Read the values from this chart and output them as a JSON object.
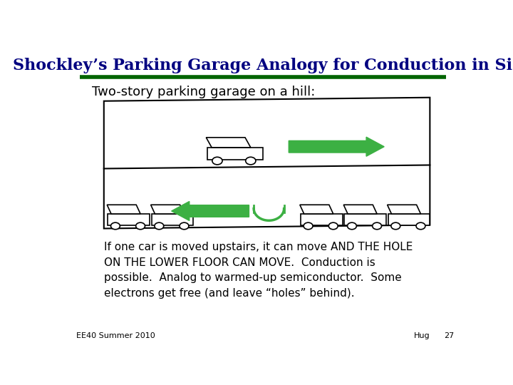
{
  "title": "Shockley’s Parking Garage Analogy for Conduction in Si",
  "title_color": "#000080",
  "title_fontsize": 16,
  "underline_color": "#006400",
  "subtitle": "Two-story parking garage on a hill:",
  "subtitle_fontsize": 13,
  "body_text": "If one car is moved upstairs, it can move AND THE HOLE\nON THE LOWER FLOOR CAN MOVE.  Conduction is\npossible.  Analog to warmed-up semiconductor.  Some\nelectrons get free (and leave “holes” behind).",
  "body_fontsize": 11,
  "footer_left": "EE40 Summer 2010",
  "footer_right_1": "Hug",
  "footer_right_2": "27",
  "footer_fontsize": 8,
  "bg_color": "#ffffff",
  "arrow_green": "#3cb043",
  "car_outline": "#000000"
}
